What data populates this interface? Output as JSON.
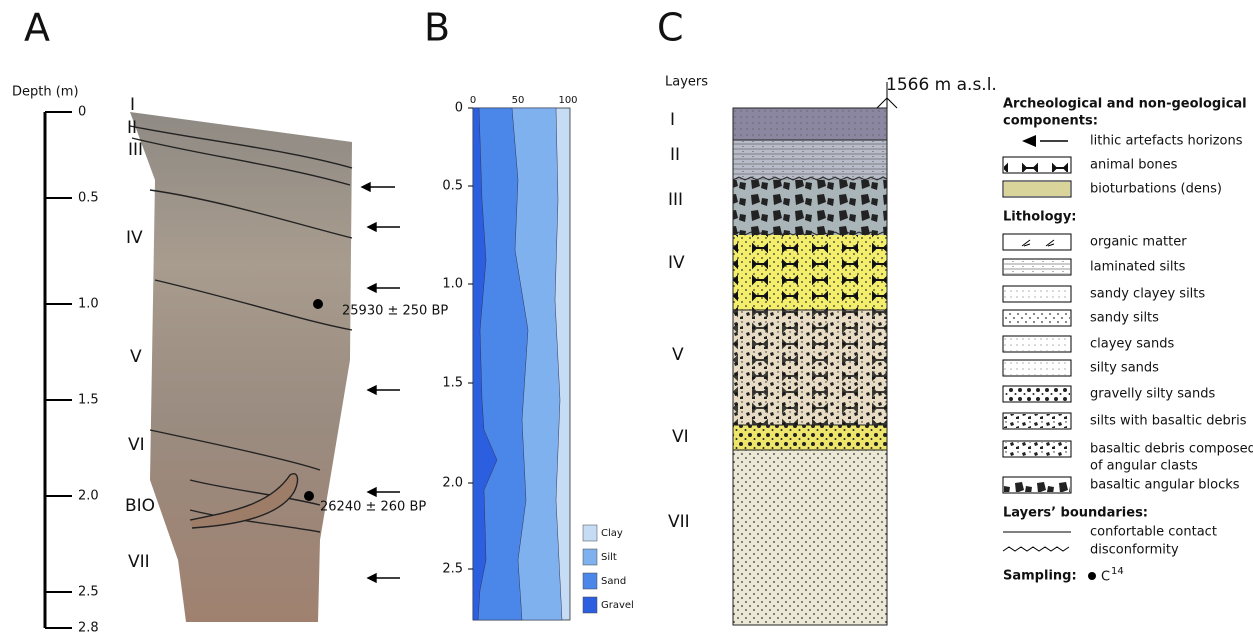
{
  "panel_a": {
    "label": "A",
    "axis_title": "Depth (m)",
    "depth_ticks": [
      "0",
      "0.5",
      "1.0",
      "1.5",
      "2.0",
      "2.5",
      "2.8"
    ],
    "layers": [
      "I",
      "II",
      "III",
      "IV",
      "V",
      "VI",
      "BIO",
      "VII"
    ],
    "dates": [
      "25930 ± 250 BP",
      "26240 ± 260 BP"
    ]
  },
  "panel_b": {
    "label": "B",
    "x_ticks": [
      "0",
      "50",
      "100"
    ],
    "depth_ticks": [
      "0",
      "0.5",
      "1.0",
      "1.5",
      "2.0",
      "2.5"
    ],
    "legend": [
      "Clay",
      "Silt",
      "Sand",
      "Gravel"
    ]
  },
  "panel_c": {
    "label": "C",
    "column_title": "Layers",
    "elevation": "1566 m a.s.l.",
    "layers": [
      "I",
      "II",
      "III",
      "IV",
      "V",
      "VI",
      "VII"
    ],
    "legend": {
      "components": {
        "heading": [
          "Archeological and non-geological",
          "components:"
        ],
        "items": [
          "lithic artefacts horizons",
          "animal bones",
          "bioturbations (dens)"
        ]
      },
      "lithology": {
        "heading": "Lithology:",
        "items": [
          "organic matter",
          "laminated silts",
          "sandy clayey silts",
          "sandy silts",
          "clayey sands",
          "silty sands",
          "gravelly silty sands",
          "silts with basaltic debris",
          [
            "basaltic debris composed",
            "of angular clasts"
          ],
          "basaltic angular blocks"
        ]
      },
      "boundaries": {
        "heading": "Layers’ boundaries:",
        "items": [
          "confortable contact",
          "disconformity"
        ]
      },
      "sampling": {
        "heading": "Sampling:",
        "symbol": "C",
        "superscript": "14"
      }
    }
  }
}
